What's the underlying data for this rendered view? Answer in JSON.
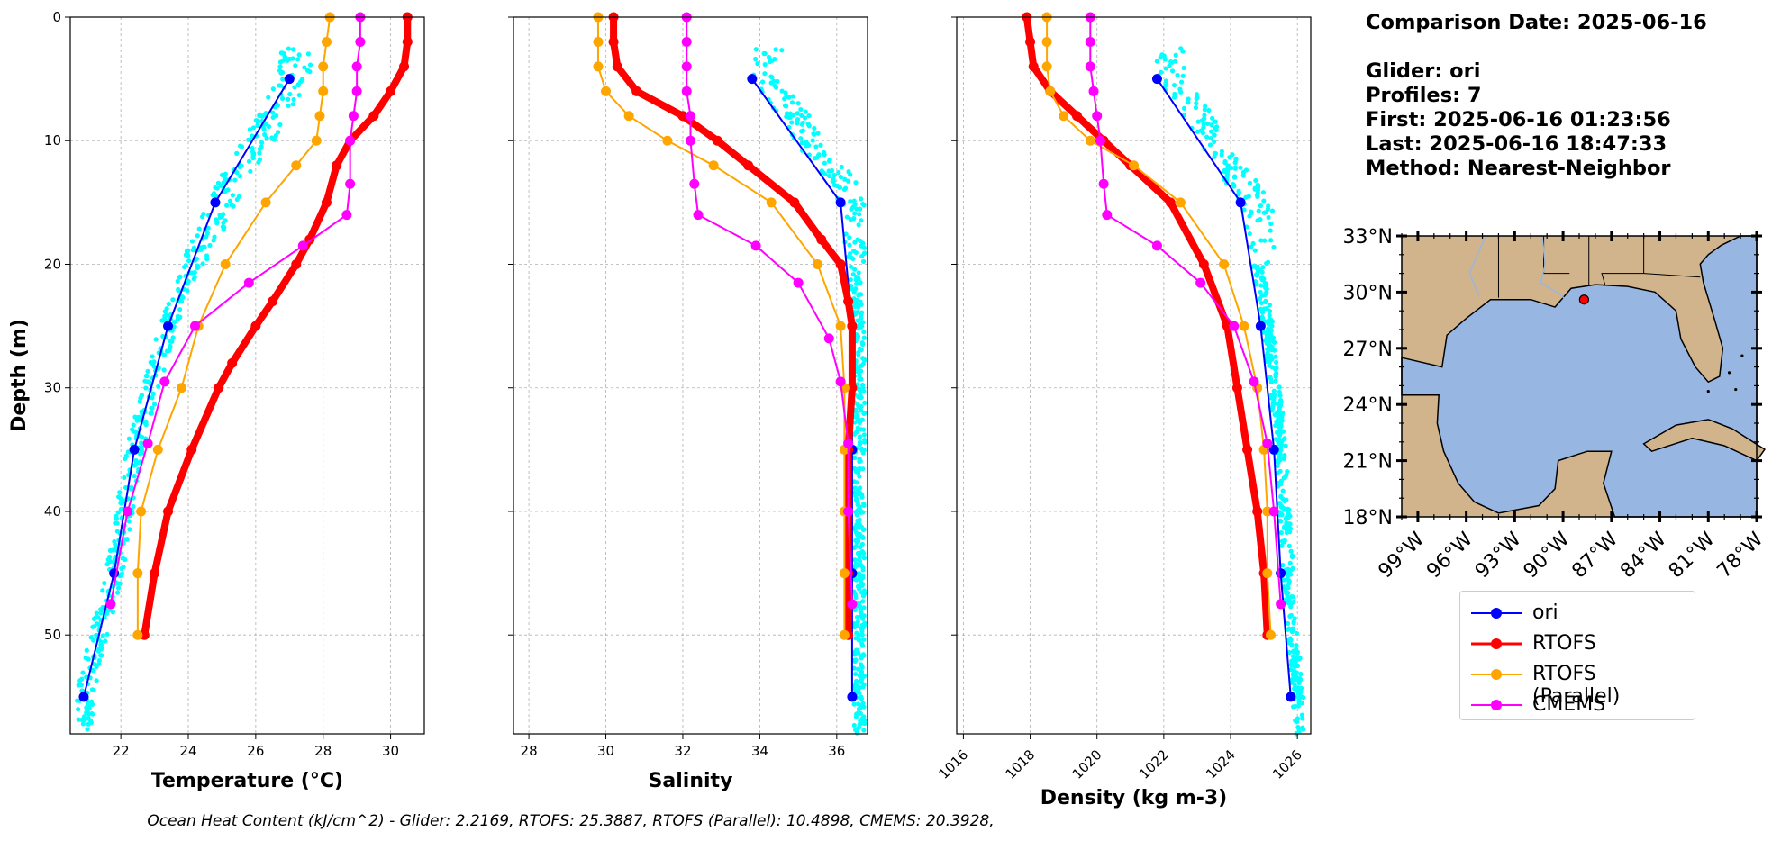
{
  "info": {
    "comparison_date": "Comparison Date: 2025-06-16",
    "glider": "Glider: ori",
    "profiles": "Profiles: 7",
    "first": "First: 2025-06-16 01:23:56",
    "last": "Last: 2025-06-16 18:47:33",
    "method": "Method: Nearest-Neighbor"
  },
  "footer": "Ocean Heat Content (kJ/cm^2) - Glider: 2.2169,  RTOFS: 25.3887,  RTOFS (Parallel): 10.4898,  CMEMS: 20.3928,",
  "legend": [
    {
      "name": "ori",
      "color": "#0000ff"
    },
    {
      "name": "RTOFS",
      "color": "#ff0000"
    },
    {
      "name": "RTOFS (Parallel)",
      "color": "#ffa500"
    },
    {
      "name": "CMEMS",
      "color": "#ff00ff"
    }
  ],
  "map": {
    "lat_ticks": [
      "33°N",
      "30°N",
      "27°N",
      "24°N",
      "21°N",
      "18°N"
    ],
    "lon_ticks": [
      "99°W",
      "96°W",
      "93°W",
      "90°W",
      "87°W",
      "84°W",
      "81°W",
      "78°W"
    ],
    "extent": {
      "lon": [
        -100,
        -78
      ],
      "lat": [
        18,
        33
      ]
    },
    "glider_position": {
      "lon": -88.7,
      "lat": 29.6
    },
    "land_color": "#d2b48c",
    "water_color": "#97b6e1"
  },
  "chart_data": [
    {
      "type": "line",
      "xlabel": "Temperature (°C)",
      "ylabel": "Depth (m)",
      "xlim": [
        20.5,
        31
      ],
      "ylim": [
        58,
        0
      ],
      "xticks": [
        22,
        24,
        26,
        28,
        30
      ],
      "yticks": [
        0,
        10,
        20,
        30,
        40,
        50
      ],
      "grid": true,
      "scatter_color": "#00ffff",
      "series": [
        {
          "name": "ori",
          "color": "#0000ff",
          "width": 2,
          "points": [
            [
              27.0,
              5
            ],
            [
              24.8,
              15
            ],
            [
              23.4,
              25
            ],
            [
              22.4,
              35
            ],
            [
              21.8,
              45
            ],
            [
              20.9,
              55
            ]
          ]
        },
        {
          "name": "RTOFS",
          "color": "#ff0000",
          "width": 8,
          "points": [
            [
              30.5,
              0
            ],
            [
              30.5,
              2
            ],
            [
              30.4,
              4
            ],
            [
              30.0,
              6
            ],
            [
              29.5,
              8
            ],
            [
              28.8,
              10
            ],
            [
              28.4,
              12
            ],
            [
              28.1,
              15
            ],
            [
              27.6,
              18
            ],
            [
              27.2,
              20
            ],
            [
              26.5,
              23
            ],
            [
              26.0,
              25
            ],
            [
              25.3,
              28
            ],
            [
              24.9,
              30
            ],
            [
              24.1,
              35
            ],
            [
              23.4,
              40
            ],
            [
              23.0,
              45
            ],
            [
              22.7,
              50
            ]
          ]
        },
        {
          "name": "RTOFS (Parallel)",
          "color": "#ffa500",
          "width": 2,
          "points": [
            [
              28.2,
              0
            ],
            [
              28.1,
              2
            ],
            [
              28.0,
              4
            ],
            [
              28.0,
              6
            ],
            [
              27.9,
              8
            ],
            [
              27.8,
              10
            ],
            [
              27.2,
              12
            ],
            [
              26.3,
              15
            ],
            [
              25.1,
              20
            ],
            [
              24.3,
              25
            ],
            [
              23.8,
              30
            ],
            [
              23.1,
              35
            ],
            [
              22.6,
              40
            ],
            [
              22.5,
              45
            ],
            [
              22.5,
              50
            ]
          ]
        },
        {
          "name": "CMEMS",
          "color": "#ff00ff",
          "width": 2,
          "points": [
            [
              29.1,
              0
            ],
            [
              29.1,
              2
            ],
            [
              29.0,
              4
            ],
            [
              29.0,
              6
            ],
            [
              28.9,
              8
            ],
            [
              28.8,
              10
            ],
            [
              28.8,
              13.5
            ],
            [
              28.7,
              16
            ],
            [
              27.4,
              18.5
            ],
            [
              25.8,
              21.5
            ],
            [
              24.2,
              25
            ],
            [
              23.3,
              29.5
            ],
            [
              22.8,
              34.5
            ],
            [
              22.2,
              40
            ],
            [
              21.7,
              47.5
            ]
          ]
        }
      ]
    },
    {
      "type": "line",
      "xlabel": "Salinity",
      "xlim": [
        27.6,
        36.8
      ],
      "ylim": [
        58,
        0
      ],
      "xticks": [
        28,
        30,
        32,
        34,
        36
      ],
      "yticks": [
        0,
        10,
        20,
        30,
        40,
        50
      ],
      "grid": true,
      "scatter_color": "#00ffff",
      "series": [
        {
          "name": "ori",
          "color": "#0000ff",
          "width": 2,
          "points": [
            [
              33.8,
              5
            ],
            [
              36.1,
              15
            ],
            [
              36.4,
              25
            ],
            [
              36.4,
              35
            ],
            [
              36.4,
              45
            ],
            [
              36.4,
              55
            ]
          ]
        },
        {
          "name": "RTOFS",
          "color": "#ff0000",
          "width": 8,
          "points": [
            [
              30.2,
              0
            ],
            [
              30.2,
              2
            ],
            [
              30.3,
              4
            ],
            [
              30.8,
              6
            ],
            [
              32.0,
              8
            ],
            [
              32.9,
              10
            ],
            [
              33.7,
              12
            ],
            [
              34.9,
              15
            ],
            [
              35.6,
              18
            ],
            [
              36.1,
              20
            ],
            [
              36.3,
              23
            ],
            [
              36.4,
              25
            ],
            [
              36.4,
              30
            ],
            [
              36.3,
              35
            ],
            [
              36.3,
              40
            ],
            [
              36.3,
              45
            ],
            [
              36.3,
              50
            ]
          ]
        },
        {
          "name": "RTOFS (Parallel)",
          "color": "#ffa500",
          "width": 2,
          "points": [
            [
              29.8,
              0
            ],
            [
              29.8,
              2
            ],
            [
              29.8,
              4
            ],
            [
              30.0,
              6
            ],
            [
              30.6,
              8
            ],
            [
              31.6,
              10
            ],
            [
              32.8,
              12
            ],
            [
              34.3,
              15
            ],
            [
              35.5,
              20
            ],
            [
              36.1,
              25
            ],
            [
              36.2,
              30
            ],
            [
              36.2,
              35
            ],
            [
              36.2,
              40
            ],
            [
              36.2,
              45
            ],
            [
              36.2,
              50
            ]
          ]
        },
        {
          "name": "CMEMS",
          "color": "#ff00ff",
          "width": 2,
          "points": [
            [
              32.1,
              0
            ],
            [
              32.1,
              2
            ],
            [
              32.1,
              4
            ],
            [
              32.1,
              6
            ],
            [
              32.2,
              8
            ],
            [
              32.2,
              10
            ],
            [
              32.3,
              13.5
            ],
            [
              32.4,
              16
            ],
            [
              33.9,
              18.5
            ],
            [
              35.0,
              21.5
            ],
            [
              35.8,
              26
            ],
            [
              36.1,
              29.5
            ],
            [
              36.3,
              34.5
            ],
            [
              36.3,
              40
            ],
            [
              36.4,
              47.5
            ]
          ]
        }
      ]
    },
    {
      "type": "line",
      "xlabel": "Density (kg m-3)",
      "xlim": [
        1015.8,
        1026.4
      ],
      "ylim": [
        58,
        0
      ],
      "xticks": [
        1016,
        1018,
        1020,
        1022,
        1024,
        1026
      ],
      "yticks": [
        0,
        10,
        20,
        30,
        40,
        50
      ],
      "grid": true,
      "scatter_color": "#00ffff",
      "series": [
        {
          "name": "ori",
          "color": "#0000ff",
          "width": 2,
          "points": [
            [
              1021.8,
              5
            ],
            [
              1024.3,
              15
            ],
            [
              1024.9,
              25
            ],
            [
              1025.3,
              35
            ],
            [
              1025.5,
              45
            ],
            [
              1025.8,
              55
            ]
          ]
        },
        {
          "name": "RTOFS",
          "color": "#ff0000",
          "width": 8,
          "points": [
            [
              1017.9,
              0
            ],
            [
              1018.0,
              2
            ],
            [
              1018.1,
              4
            ],
            [
              1018.6,
              6
            ],
            [
              1019.4,
              8
            ],
            [
              1020.2,
              10
            ],
            [
              1021.0,
              12
            ],
            [
              1022.2,
              15
            ],
            [
              1023.2,
              20
            ],
            [
              1023.9,
              25
            ],
            [
              1024.2,
              30
            ],
            [
              1024.5,
              35
            ],
            [
              1024.8,
              40
            ],
            [
              1025.0,
              45
            ],
            [
              1025.1,
              50
            ]
          ]
        },
        {
          "name": "RTOFS (Parallel)",
          "color": "#ffa500",
          "width": 2,
          "points": [
            [
              1018.5,
              0
            ],
            [
              1018.5,
              2
            ],
            [
              1018.5,
              4
            ],
            [
              1018.6,
              6
            ],
            [
              1019.0,
              8
            ],
            [
              1019.8,
              10
            ],
            [
              1021.1,
              12
            ],
            [
              1022.5,
              15
            ],
            [
              1023.8,
              20
            ],
            [
              1024.4,
              25
            ],
            [
              1024.8,
              30
            ],
            [
              1025.0,
              35
            ],
            [
              1025.1,
              40
            ],
            [
              1025.1,
              45
            ],
            [
              1025.2,
              50
            ]
          ]
        },
        {
          "name": "CMEMS",
          "color": "#ff00ff",
          "width": 2,
          "points": [
            [
              1019.8,
              0
            ],
            [
              1019.8,
              2
            ],
            [
              1019.8,
              4
            ],
            [
              1019.9,
              6
            ],
            [
              1020.0,
              8
            ],
            [
              1020.1,
              10
            ],
            [
              1020.2,
              13.5
            ],
            [
              1020.3,
              16
            ],
            [
              1021.8,
              18.5
            ],
            [
              1023.1,
              21.5
            ],
            [
              1024.1,
              25
            ],
            [
              1024.7,
              29.5
            ],
            [
              1025.1,
              34.5
            ],
            [
              1025.3,
              40
            ],
            [
              1025.5,
              47.5
            ]
          ]
        }
      ]
    }
  ]
}
